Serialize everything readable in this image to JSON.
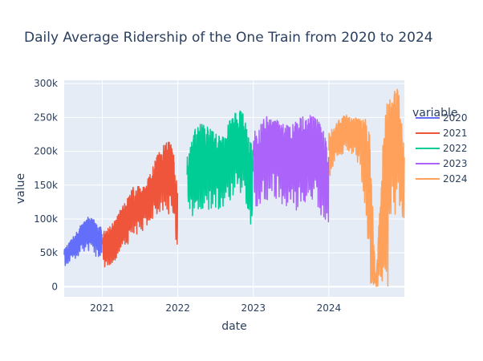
{
  "chart_data": {
    "type": "line",
    "title": "Daily Average Ridership of the One Train from 2020 to 2024",
    "xlabel": "date",
    "ylabel": "value",
    "x_ticks": [
      "2021",
      "2022",
      "2023",
      "2024"
    ],
    "y_ticks": [
      "0",
      "50k",
      "100k",
      "150k",
      "200k",
      "250k",
      "300k"
    ],
    "xlim": [
      "2020-07-01",
      "2024-12-31"
    ],
    "ylim": [
      -15000,
      305000
    ],
    "grid": true,
    "legend": {
      "title": "variable",
      "position": "right"
    },
    "plot_bgcolor": "#E5ECF6",
    "series": [
      {
        "name": "2020",
        "color": "#636EFA",
        "points": [
          {
            "date": "2020-07-01",
            "low": 30000,
            "high": 55000
          },
          {
            "date": "2020-08-01",
            "low": 35000,
            "high": 68000
          },
          {
            "date": "2020-09-01",
            "low": 42000,
            "high": 82000
          },
          {
            "date": "2020-10-01",
            "low": 50000,
            "high": 100000
          },
          {
            "date": "2020-11-01",
            "low": 52000,
            "high": 104000
          },
          {
            "date": "2020-12-01",
            "low": 45000,
            "high": 98000
          },
          {
            "date": "2020-12-31",
            "low": 40000,
            "high": 85000
          }
        ]
      },
      {
        "name": "2021",
        "color": "#EF553B",
        "points": [
          {
            "date": "2021-01-01",
            "low": 25000,
            "high": 80000
          },
          {
            "date": "2021-02-01",
            "low": 30000,
            "high": 88000
          },
          {
            "date": "2021-03-01",
            "low": 38000,
            "high": 100000
          },
          {
            "date": "2021-04-01",
            "low": 45000,
            "high": 115000
          },
          {
            "date": "2021-05-01",
            "low": 60000,
            "high": 130000
          },
          {
            "date": "2021-06-01",
            "low": 75000,
            "high": 148000
          },
          {
            "date": "2021-07-01",
            "low": 80000,
            "high": 150000
          },
          {
            "date": "2021-08-01",
            "low": 85000,
            "high": 155000
          },
          {
            "date": "2021-09-01",
            "low": 95000,
            "high": 180000
          },
          {
            "date": "2021-10-01",
            "low": 110000,
            "high": 200000
          },
          {
            "date": "2021-11-01",
            "low": 115000,
            "high": 212000
          },
          {
            "date": "2021-12-01",
            "low": 90000,
            "high": 220000
          },
          {
            "date": "2021-12-31",
            "low": 60000,
            "high": 150000
          }
        ]
      },
      {
        "name": "2022",
        "color": "#00CC96",
        "points": [
          {
            "date": "2022-02-15",
            "low": 100000,
            "high": 195000
          },
          {
            "date": "2022-03-15",
            "low": 105000,
            "high": 230000
          },
          {
            "date": "2022-04-15",
            "low": 110000,
            "high": 240000
          },
          {
            "date": "2022-05-15",
            "low": 115000,
            "high": 240000
          },
          {
            "date": "2022-06-15",
            "low": 110000,
            "high": 230000
          },
          {
            "date": "2022-07-15",
            "low": 110000,
            "high": 225000
          },
          {
            "date": "2022-08-15",
            "low": 115000,
            "high": 220000
          },
          {
            "date": "2022-09-15",
            "low": 130000,
            "high": 255000
          },
          {
            "date": "2022-10-15",
            "low": 140000,
            "high": 262000
          },
          {
            "date": "2022-11-15",
            "low": 135000,
            "high": 258000
          },
          {
            "date": "2022-12-31",
            "low": 65000,
            "high": 200000
          }
        ]
      },
      {
        "name": "2023",
        "color": "#AB63FA",
        "points": [
          {
            "date": "2023-01-01",
            "low": 110000,
            "high": 230000
          },
          {
            "date": "2023-02-01",
            "low": 120000,
            "high": 240000
          },
          {
            "date": "2023-03-01",
            "low": 125000,
            "high": 252000
          },
          {
            "date": "2023-04-01",
            "low": 130000,
            "high": 250000
          },
          {
            "date": "2023-05-01",
            "low": 125000,
            "high": 245000
          },
          {
            "date": "2023-06-01",
            "low": 120000,
            "high": 240000
          },
          {
            "date": "2023-07-01",
            "low": 115000,
            "high": 238000
          },
          {
            "date": "2023-08-01",
            "low": 110000,
            "high": 245000
          },
          {
            "date": "2023-09-01",
            "low": 120000,
            "high": 255000
          },
          {
            "date": "2023-10-01",
            "low": 125000,
            "high": 257000
          },
          {
            "date": "2023-11-01",
            "low": 120000,
            "high": 250000
          },
          {
            "date": "2023-12-01",
            "low": 95000,
            "high": 240000
          },
          {
            "date": "2023-12-31",
            "low": 90000,
            "high": 200000
          }
        ]
      },
      {
        "name": "2024",
        "color": "#FFA15A",
        "points": [
          {
            "date": "2024-01-01",
            "low": 135000,
            "high": 230000
          },
          {
            "date": "2024-02-01",
            "low": 190000,
            "high": 240000
          },
          {
            "date": "2024-03-01",
            "low": 195000,
            "high": 250000
          },
          {
            "date": "2024-04-01",
            "low": 200000,
            "high": 255000
          },
          {
            "date": "2024-05-01",
            "low": 195000,
            "high": 250000
          },
          {
            "date": "2024-06-01",
            "low": 170000,
            "high": 250000
          },
          {
            "date": "2024-07-01",
            "low": 90000,
            "high": 250000
          },
          {
            "date": "2024-07-15",
            "low": 0,
            "high": 240000
          },
          {
            "date": "2024-08-15",
            "low": 0,
            "high": 5000
          },
          {
            "date": "2024-09-15",
            "low": 0,
            "high": 195000
          },
          {
            "date": "2024-10-01",
            "low": 0,
            "high": 270000
          },
          {
            "date": "2024-10-15",
            "low": 0,
            "high": 285000
          },
          {
            "date": "2024-11-01",
            "low": 150000,
            "high": 280000
          },
          {
            "date": "2024-11-15",
            "low": 105000,
            "high": 290000
          },
          {
            "date": "2024-12-01",
            "low": 130000,
            "high": 295000
          },
          {
            "date": "2024-12-31",
            "low": 85000,
            "high": 200000
          }
        ]
      }
    ]
  }
}
